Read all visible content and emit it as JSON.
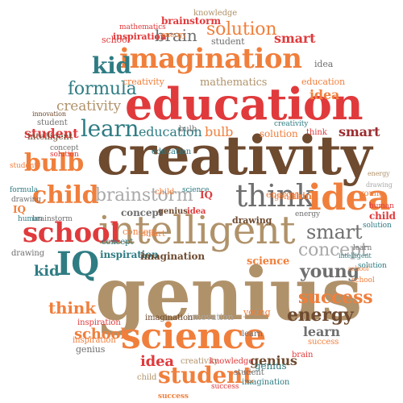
{
  "palette": {
    "red": "#e03a3c",
    "orange": "#f07f3c",
    "tan": "#b0926a",
    "brown": "#6e4a2f",
    "teal": "#2f7c83",
    "gray": "#6f6f6f",
    "lightgray": "#a9a9a9",
    "darkred": "#9b2b2f"
  },
  "words": [
    {
      "text": "creativity",
      "color": "brown"
    },
    {
      "text": "genius",
      "color": "tan"
    },
    {
      "text": "education",
      "color": "red"
    },
    {
      "text": "intelligent",
      "color": "tan"
    },
    {
      "text": "science",
      "color": "orange"
    },
    {
      "text": "imagination",
      "color": "orange"
    },
    {
      "text": "think",
      "color": "gray"
    },
    {
      "text": "idea",
      "color": "orange"
    },
    {
      "text": "school",
      "color": "red"
    },
    {
      "text": "IQ",
      "color": "teal"
    },
    {
      "text": "bulb",
      "color": "orange"
    },
    {
      "text": "child",
      "color": "orange"
    },
    {
      "text": "brainstorm",
      "color": "lightgray"
    },
    {
      "text": "student",
      "color": "orange"
    },
    {
      "text": "success",
      "color": "orange"
    },
    {
      "text": "energy",
      "color": "brown"
    },
    {
      "text": "smart",
      "color": "gray"
    },
    {
      "text": "concept",
      "color": "lightgray"
    },
    {
      "text": "young",
      "color": "gray"
    },
    {
      "text": "learn",
      "color": "teal"
    },
    {
      "text": "formula",
      "color": "teal"
    },
    {
      "text": "kid",
      "color": "teal"
    },
    {
      "text": "solution",
      "color": "orange"
    },
    {
      "text": "brain",
      "color": "gray"
    },
    {
      "text": "mathematics",
      "color": "tan"
    },
    {
      "text": "creativity",
      "color": "tan"
    },
    {
      "text": "education",
      "color": "teal"
    },
    {
      "text": "bulb",
      "color": "orange"
    },
    {
      "text": "think",
      "color": "orange"
    },
    {
      "text": "school",
      "color": "orange"
    },
    {
      "text": "student",
      "color": "red"
    },
    {
      "text": "learn",
      "color": "gray"
    },
    {
      "text": "kid",
      "color": "teal"
    },
    {
      "text": "idea",
      "color": "red"
    },
    {
      "text": "genius",
      "color": "brown"
    },
    {
      "text": "brainstorm",
      "color": "red"
    },
    {
      "text": "inspiration",
      "color": "red"
    },
    {
      "text": "solution",
      "color": "orange"
    },
    {
      "text": "smart",
      "color": "red"
    },
    {
      "text": "knowledge",
      "color": "tan"
    },
    {
      "text": "school",
      "color": "red"
    },
    {
      "text": "student",
      "color": "gray"
    },
    {
      "text": "energy",
      "color": "orange"
    },
    {
      "text": "idea",
      "color": "gray"
    },
    {
      "text": "education",
      "color": "orange"
    },
    {
      "text": "creativity",
      "color": "orange"
    },
    {
      "text": "mathematics",
      "color": "red"
    },
    {
      "text": "idea",
      "color": "orange"
    },
    {
      "text": "innovation",
      "color": "brown"
    },
    {
      "text": "student",
      "color": "gray"
    },
    {
      "text": "intelligent",
      "color": "brown"
    },
    {
      "text": "solution",
      "color": "red"
    },
    {
      "text": "concept",
      "color": "gray"
    },
    {
      "text": "smart",
      "color": "darkred"
    },
    {
      "text": "student",
      "color": "orange"
    },
    {
      "text": "concept",
      "color": "gray"
    },
    {
      "text": "solution",
      "color": "teal"
    },
    {
      "text": "school",
      "color": "orange"
    },
    {
      "text": "formula",
      "color": "teal"
    },
    {
      "text": "drawing",
      "color": "gray"
    },
    {
      "text": "human",
      "color": "teal"
    },
    {
      "text": "human",
      "color": "red"
    },
    {
      "text": "brainstorm",
      "color": "gray"
    },
    {
      "text": "drawing",
      "color": "gray"
    },
    {
      "text": "concept",
      "color": "orange"
    },
    {
      "text": "child",
      "color": "red"
    },
    {
      "text": "inspiration",
      "color": "teal"
    },
    {
      "text": "imagination",
      "color": "brown"
    },
    {
      "text": "science",
      "color": "orange"
    },
    {
      "text": "young",
      "color": "orange"
    },
    {
      "text": "learn",
      "color": "gray"
    },
    {
      "text": "genius",
      "color": "gray"
    },
    {
      "text": "energy",
      "color": "orange"
    },
    {
      "text": "think",
      "color": "orange"
    },
    {
      "text": "drawing",
      "color": "brown"
    },
    {
      "text": "science",
      "color": "teal"
    },
    {
      "text": "success",
      "color": "orange"
    },
    {
      "text": "inspiration",
      "color": "red"
    },
    {
      "text": "innovation",
      "color": "lightgray"
    },
    {
      "text": "imagination",
      "color": "brown"
    },
    {
      "text": "creativity",
      "color": "tan"
    },
    {
      "text": "knowledge",
      "color": "red"
    },
    {
      "text": "genius",
      "color": "teal"
    },
    {
      "text": "brain",
      "color": "red"
    },
    {
      "text": "child",
      "color": "tan"
    },
    {
      "text": "student",
      "color": "gray"
    },
    {
      "text": "imagination",
      "color": "teal"
    },
    {
      "text": "success",
      "color": "red"
    },
    {
      "text": "intelligent",
      "color": "teal"
    },
    {
      "text": "learn",
      "color": "gray"
    },
    {
      "text": "success",
      "color": "orange"
    },
    {
      "text": "inspiration",
      "color": "orange"
    },
    {
      "text": "genius",
      "color": "brown"
    },
    {
      "text": "idea",
      "color": "red"
    },
    {
      "text": "child",
      "color": "orange"
    },
    {
      "text": "bulb",
      "color": "gray"
    },
    {
      "text": "smart",
      "color": "orange"
    },
    {
      "text": "concept",
      "color": "teal"
    },
    {
      "text": "education",
      "color": "teal"
    },
    {
      "text": "think",
      "color": "red"
    },
    {
      "text": "solution",
      "color": "teal"
    },
    {
      "text": "energy",
      "color": "tan"
    },
    {
      "text": "drawing",
      "color": "lightgray"
    },
    {
      "text": "young",
      "color": "orange"
    },
    {
      "text": "school",
      "color": "orange"
    },
    {
      "text": "IQ",
      "color": "red"
    },
    {
      "text": "creativity",
      "color": "teal"
    },
    {
      "text": "IQ",
      "color": "orange"
    },
    {
      "text": "energy",
      "color": "gray"
    },
    {
      "text": "genius",
      "color": "orange"
    }
  ]
}
